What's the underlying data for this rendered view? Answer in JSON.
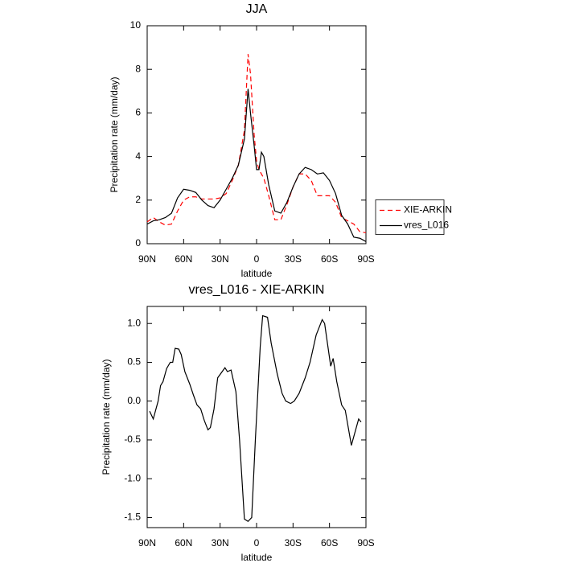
{
  "chart_data": [
    {
      "type": "line",
      "title": "JJA",
      "xlabel": "latitude",
      "ylabel": "Precipitation rate (mm/day)",
      "x": [
        90,
        85,
        80,
        75,
        70,
        65,
        60,
        55,
        50,
        45,
        40,
        35,
        30,
        25,
        20,
        15,
        10,
        7,
        5,
        2,
        0,
        -2,
        -4,
        -6,
        -10,
        -15,
        -20,
        -25,
        -30,
        -35,
        -40,
        -45,
        -50,
        -55,
        -60,
        -65,
        -70,
        -75,
        -80,
        -85,
        -90
      ],
      "series": [
        {
          "name": "XIE-ARKIN",
          "color": "#ff0000",
          "line_style": "dashed",
          "values": [
            1.0,
            1.2,
            1.0,
            0.85,
            0.9,
            1.5,
            2.0,
            2.15,
            2.15,
            2.05,
            2.05,
            2.05,
            2.1,
            2.3,
            2.9,
            3.6,
            5.2,
            8.7,
            7.8,
            5.0,
            3.8,
            3.4,
            3.2,
            3.0,
            2.2,
            1.1,
            1.1,
            1.8,
            2.6,
            3.2,
            3.2,
            2.9,
            2.2,
            2.2,
            2.2,
            1.9,
            1.2,
            1.05,
            0.9,
            0.55,
            0.5
          ]
        },
        {
          "name": "vres_L016",
          "color": "#000000",
          "line_style": "solid",
          "values": [
            0.9,
            1.05,
            1.1,
            1.2,
            1.4,
            2.1,
            2.5,
            2.45,
            2.35,
            2.0,
            1.75,
            1.65,
            2.0,
            2.5,
            3.0,
            3.6,
            4.8,
            7.1,
            6.0,
            4.5,
            3.4,
            3.4,
            4.2,
            4.0,
            2.7,
            1.5,
            1.4,
            1.9,
            2.6,
            3.2,
            3.5,
            3.4,
            3.2,
            3.25,
            2.9,
            2.3,
            1.3,
            0.9,
            0.3,
            0.25,
            0.1
          ]
        }
      ],
      "xlim": [
        90,
        -90
      ],
      "xticks": [
        {
          "value": 90,
          "label": "90N"
        },
        {
          "value": 60,
          "label": "60N"
        },
        {
          "value": 30,
          "label": "30N"
        },
        0,
        {
          "value": -30,
          "label": "30S"
        },
        {
          "value": -60,
          "label": "60S"
        },
        {
          "value": -90,
          "label": "90S"
        }
      ],
      "ylim": [
        0,
        10
      ],
      "yticks": [
        0,
        2,
        4,
        6,
        8,
        10
      ],
      "legend": "right"
    },
    {
      "type": "line",
      "title": "vres_L016 - XIE-ARKIN",
      "xlabel": "latitude",
      "ylabel": "Precipitation rate (mm/day)",
      "x": [
        88,
        85,
        81,
        79,
        77,
        74,
        71,
        69,
        67,
        64,
        62,
        59,
        55,
        52,
        49,
        46,
        43,
        40,
        38,
        35,
        32,
        26,
        24,
        21,
        17,
        14,
        10,
        7,
        4,
        1,
        -3,
        -5,
        -9,
        -12,
        -17,
        -21,
        -24,
        -28,
        -31,
        -35,
        -40,
        -44,
        -49,
        -54,
        -56,
        -61,
        -63,
        -66,
        -70,
        -73,
        -78,
        -84,
        -86
      ],
      "series": [
        {
          "color": "#000000",
          "line_style": "solid",
          "values": [
            -0.13,
            -0.23,
            0.0,
            0.2,
            0.25,
            0.42,
            0.5,
            0.5,
            0.68,
            0.67,
            0.6,
            0.38,
            0.22,
            0.08,
            -0.05,
            -0.1,
            -0.25,
            -0.37,
            -0.34,
            -0.1,
            0.3,
            0.43,
            0.38,
            0.4,
            0.12,
            -0.5,
            -1.52,
            -1.55,
            -1.5,
            -0.5,
            0.7,
            1.1,
            1.08,
            0.75,
            0.35,
            0.1,
            0.0,
            -0.03,
            0.0,
            0.1,
            0.3,
            0.5,
            0.85,
            1.05,
            1.0,
            0.45,
            0.55,
            0.25,
            -0.05,
            -0.12,
            -0.57,
            -0.23,
            -0.27
          ]
        }
      ],
      "xlim": [
        90,
        -90
      ],
      "xticks": [
        {
          "value": 90,
          "label": "90N"
        },
        {
          "value": 60,
          "label": "60N"
        },
        {
          "value": 30,
          "label": "30N"
        },
        0,
        {
          "value": -30,
          "label": "30S"
        },
        {
          "value": -60,
          "label": "60S"
        },
        {
          "value": -90,
          "label": "90S"
        }
      ],
      "ylim": [
        -1.63,
        1.22
      ],
      "yticks": [
        -1.5,
        {
          "value": -1.0,
          "label": "-1.0"
        },
        -0.5,
        {
          "value": 0,
          "label": "0.0"
        },
        0.5,
        {
          "value": 1,
          "label": "1.0"
        }
      ]
    }
  ]
}
